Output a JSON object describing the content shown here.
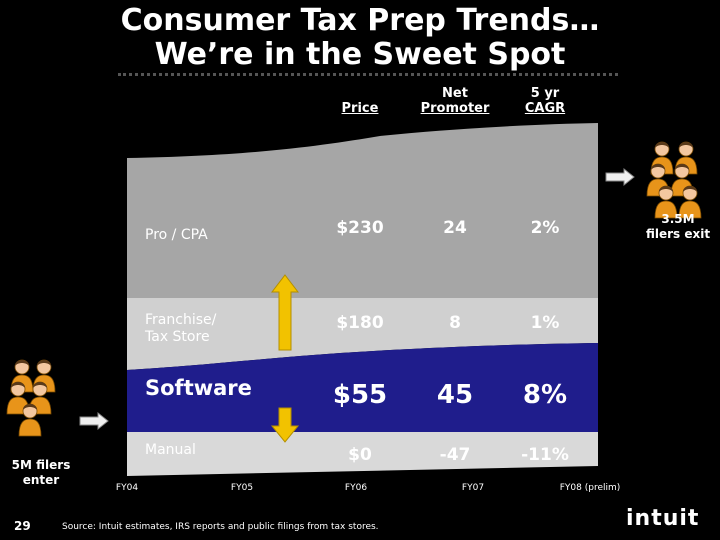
{
  "title": {
    "line1": "Consumer Tax Prep Trends…",
    "line2": "We’re in the Sweet Spot"
  },
  "columns": {
    "price": "Price",
    "net_promoter_1": "Net",
    "net_promoter_2": "Promoter",
    "cagr_1": "5 yr",
    "cagr_2": "CAGR"
  },
  "chart_data": {
    "type": "area",
    "x": [
      "FY04",
      "FY05",
      "FY06",
      "FY07",
      "FY08 (prelim)"
    ],
    "segments": [
      {
        "name": "Pro / CPA",
        "price": "$230",
        "net_promoter": "24",
        "cagr": "2%",
        "color": "#a6a6a6"
      },
      {
        "name": "Franchise/ Tax Store",
        "name_line1": "Franchise/",
        "name_line2": "Tax Store",
        "price": "$180",
        "net_promoter": "8",
        "cagr": "1%",
        "color": "#d0d0d0"
      },
      {
        "name": "Software",
        "price": "$55",
        "net_promoter": "45",
        "cagr": "8%",
        "color": "#1f1d8c"
      },
      {
        "name": "Manual",
        "price": "$0",
        "net_promoter": "-47",
        "cagr": "-11%",
        "color": "#d9d9d9"
      }
    ]
  },
  "left_note": {
    "line1": "5M filers",
    "line2": "enter"
  },
  "right_note": {
    "line1": "3.5M",
    "line2": "filers exit"
  },
  "footer": {
    "slide_number": "29",
    "source": "Source:  Intuit estimates, IRS reports and public filings from tax stores.",
    "logo": "intuit"
  }
}
